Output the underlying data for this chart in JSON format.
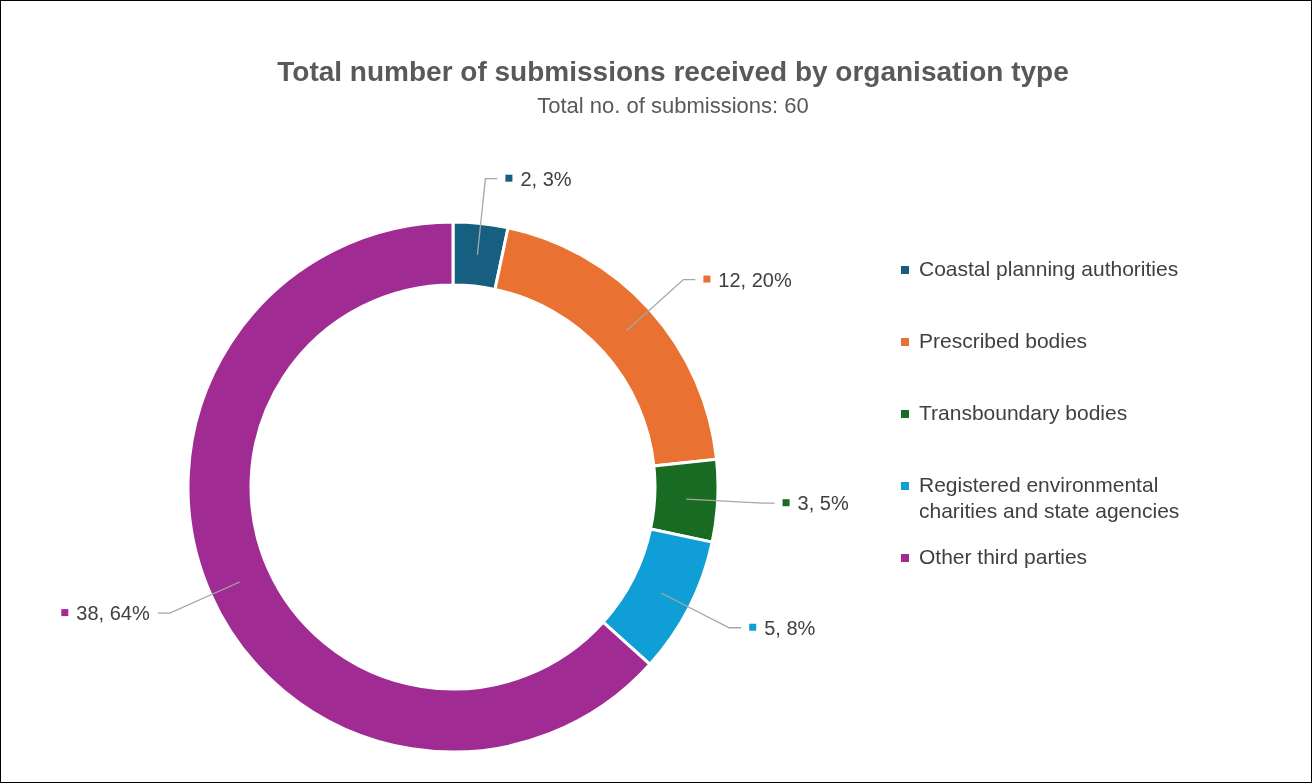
{
  "chart_data": {
    "type": "donut",
    "title": "Total number of submissions received by organisation type",
    "subtitle": "Total no. of submissions: 60",
    "categories": [
      "Coastal planning authorities",
      "Prescribed bodies",
      "Transboundary bodies",
      "Registered environmental charities and state agencies",
      "Other third parties"
    ],
    "values": [
      2,
      12,
      3,
      5,
      38
    ],
    "colors": [
      "#175f80",
      "#e97132",
      "#196b24",
      "#0f9ed5",
      "#a02b93"
    ],
    "value_labels": [
      "2, 3%",
      "12, 20%",
      "3, 5%",
      "5, 8%",
      "38, 64%"
    ],
    "legend": "right"
  }
}
